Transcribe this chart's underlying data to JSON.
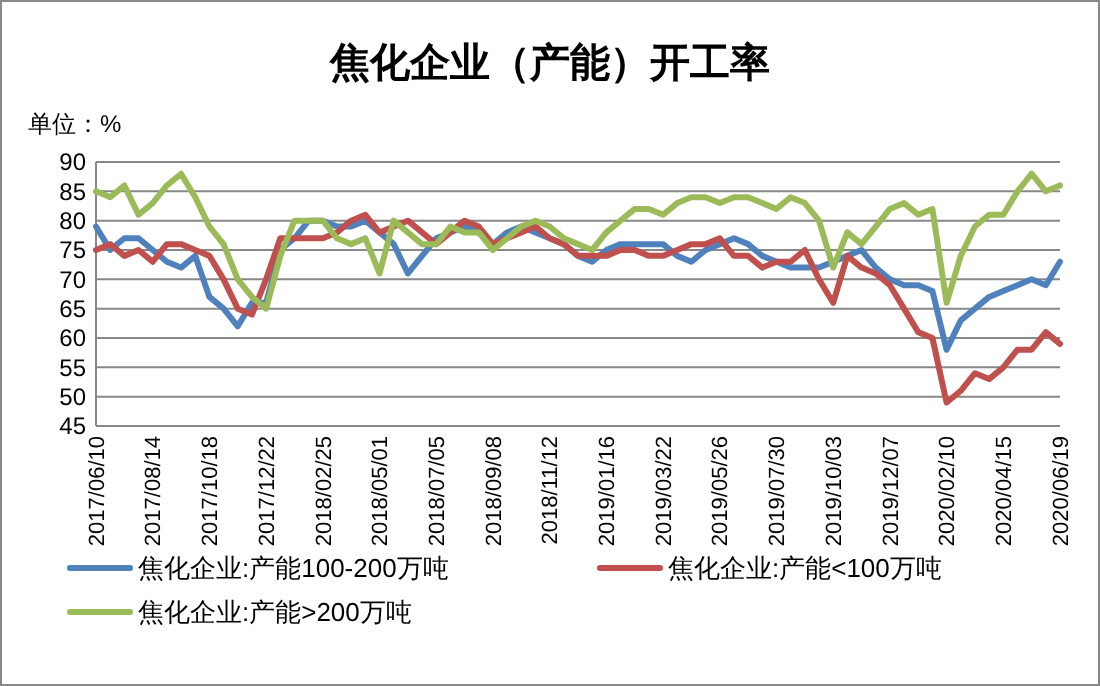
{
  "chart_data": {
    "type": "line",
    "title": "焦化企业（产能）开工率",
    "ylabel": "单位：%",
    "categories": [
      "2017/06/10",
      null,
      null,
      null,
      "2017/08/14",
      null,
      null,
      null,
      "2017/10/18",
      null,
      null,
      null,
      "2017/12/22",
      null,
      null,
      null,
      "2018/02/25",
      null,
      null,
      null,
      "2018/05/01",
      null,
      null,
      null,
      "2018/07/05",
      null,
      null,
      null,
      "2018/09/08",
      null,
      null,
      null,
      "2018/11/12",
      null,
      null,
      null,
      "2019/01/16",
      null,
      null,
      null,
      "2019/03/22",
      null,
      null,
      null,
      "2019/05/26",
      null,
      null,
      null,
      "2019/07/30",
      null,
      null,
      null,
      "2019/10/03",
      null,
      null,
      null,
      "2019/12/07",
      null,
      null,
      null,
      "2020/02/10",
      null,
      null,
      null,
      "2020/04/15",
      null,
      null,
      null,
      "2020/06/19"
    ],
    "series": [
      {
        "name": "焦化企业:产能100-200万吨",
        "color": "#4f81bd",
        "values": [
          79,
          75,
          77,
          77,
          75,
          73,
          72,
          74,
          67,
          65,
          62,
          66,
          66,
          75,
          77,
          80,
          80,
          79,
          79,
          80,
          78,
          76,
          71,
          74,
          77,
          78,
          79,
          78,
          76,
          78,
          79,
          78,
          77,
          76,
          74,
          73,
          75,
          76,
          76,
          76,
          76,
          74,
          73,
          75,
          76,
          77,
          76,
          74,
          73,
          72,
          72,
          72,
          73,
          74,
          75,
          72,
          70,
          69,
          69,
          68,
          58,
          63,
          65,
          67,
          68,
          69,
          70,
          69,
          73
        ]
      },
      {
        "name": "焦化企业:产能<100万吨",
        "color": "#c0504d",
        "values": [
          75,
          76,
          74,
          75,
          73,
          76,
          76,
          75,
          74,
          70,
          65,
          64,
          70,
          77,
          77,
          77,
          77,
          78,
          80,
          81,
          78,
          79,
          80,
          78,
          76,
          78,
          80,
          79,
          76,
          77,
          78,
          79,
          77,
          76,
          74,
          74,
          74,
          75,
          75,
          74,
          74,
          75,
          76,
          76,
          77,
          74,
          74,
          72,
          73,
          73,
          75,
          70,
          66,
          74,
          72,
          71,
          69,
          65,
          61,
          60,
          49,
          51,
          54,
          53,
          55,
          58,
          58,
          61,
          59
        ]
      },
      {
        "name": "焦化企业:产能>200万吨",
        "color": "#9bbb59",
        "values": [
          85,
          84,
          86,
          81,
          83,
          86,
          88,
          84,
          79,
          76,
          70,
          67,
          65,
          74,
          80,
          80,
          80,
          77,
          76,
          77,
          71,
          80,
          78,
          76,
          76,
          79,
          78,
          78,
          75,
          77,
          79,
          80,
          79,
          77,
          76,
          75,
          78,
          80,
          82,
          82,
          81,
          83,
          84,
          84,
          83,
          84,
          84,
          83,
          82,
          84,
          83,
          80,
          72,
          78,
          76,
          79,
          82,
          83,
          81,
          82,
          66,
          74,
          79,
          81,
          81,
          85,
          88,
          85,
          86
        ]
      }
    ],
    "ylim": [
      45,
      90
    ],
    "yticks": [
      45,
      50,
      55,
      60,
      65,
      70,
      75,
      80,
      85,
      90
    ],
    "grid": "y",
    "legend": "bottom",
    "line_style": "solid",
    "marker": "none"
  }
}
